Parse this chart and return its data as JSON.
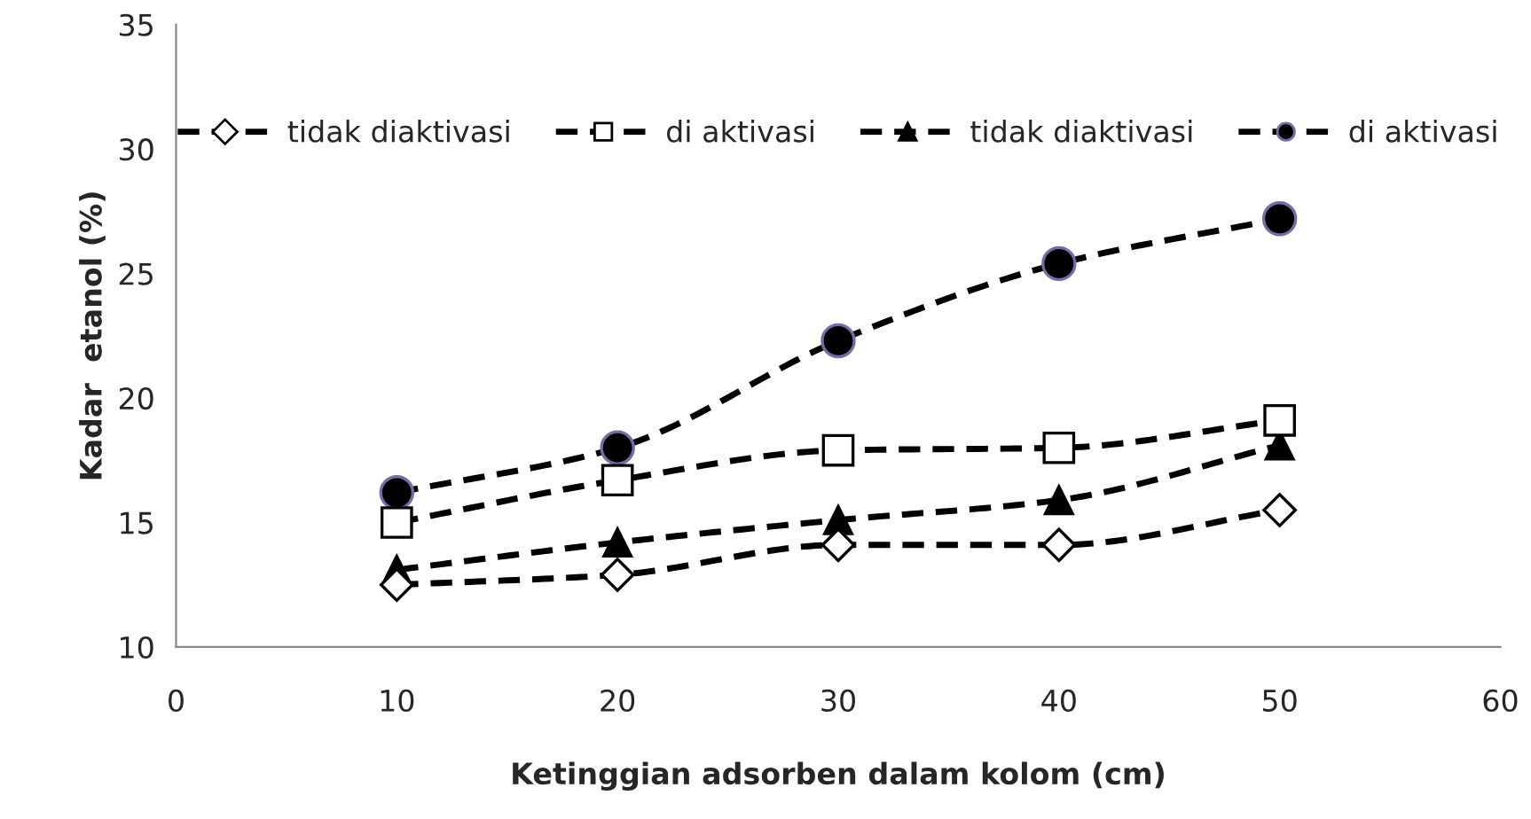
{
  "chart_data": {
    "type": "line",
    "xlabel": "Ketinggian adsorben dalam kolom (cm)",
    "ylabel": "Kadar  etanol (%)",
    "x": [
      10,
      20,
      30,
      40,
      50
    ],
    "series": [
      {
        "name": "tidak diaktivasi",
        "color": "#000000",
        "marker": "diamond",
        "values": [
          12.5,
          12.9,
          14.1,
          14.1,
          15.5
        ]
      },
      {
        "name": "di aktivasi",
        "color": "#000000",
        "marker": "square",
        "values": [
          15.0,
          16.7,
          17.9,
          18.0,
          19.1
        ]
      },
      {
        "name": "tidak diaktivasi",
        "color": "#000000",
        "marker": "triangle",
        "values": [
          13.1,
          14.2,
          15.1,
          15.9,
          18.1
        ]
      },
      {
        "name": "di aktivasi",
        "color": "#000000",
        "marker": "circle",
        "values": [
          16.2,
          18.0,
          22.3,
          25.4,
          27.2
        ]
      }
    ],
    "line_style": "dashed",
    "xlim": [
      0,
      60
    ],
    "xticks": [
      0,
      10,
      20,
      30,
      40,
      50,
      60
    ],
    "ylim": [
      10,
      35
    ],
    "yticks": [
      10,
      15,
      20,
      25,
      30,
      35
    ],
    "grid": false,
    "legend": "top"
  }
}
